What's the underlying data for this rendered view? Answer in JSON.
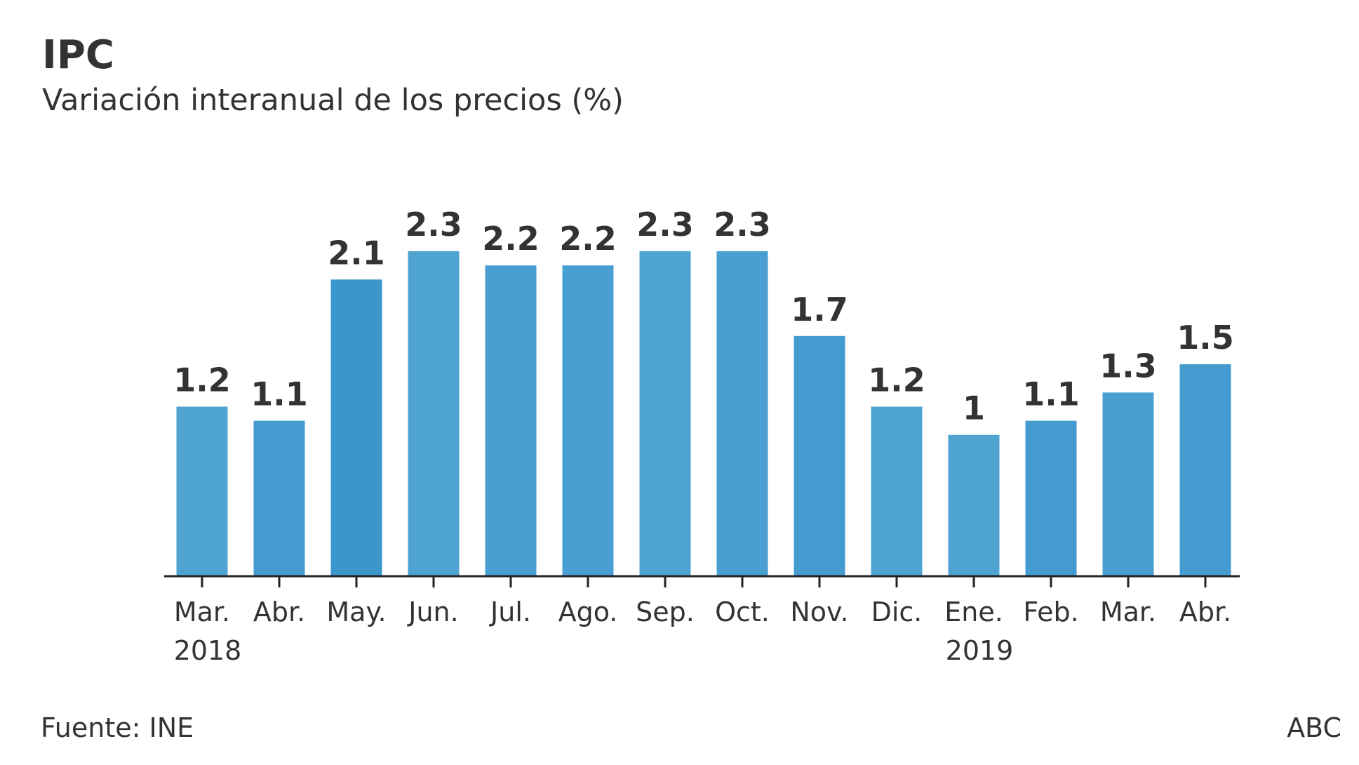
{
  "chart_data": {
    "type": "bar",
    "title": "IPC",
    "subtitle": "Variación interanual de los precios (%)",
    "categories": [
      "Mar.",
      "Abr.",
      "May.",
      "Jun.",
      "Jul.",
      "Ago.",
      "Sep.",
      "Oct.",
      "Nov.",
      "Dic.",
      "Ene.",
      "Feb.",
      "Mar.",
      "Abr."
    ],
    "year_labels": [
      {
        "index": 0,
        "label": "2018"
      },
      {
        "index": 10,
        "label": "2019"
      }
    ],
    "values": [
      1.2,
      1.1,
      2.1,
      2.3,
      2.2,
      2.2,
      2.3,
      2.3,
      1.7,
      1.2,
      1.0,
      1.1,
      1.3,
      1.5
    ],
    "value_labels": [
      "1.2",
      "1.1",
      "2.1",
      "2.3",
      "2.2",
      "2.2",
      "2.3",
      "2.3",
      "1.7",
      "1.2",
      "1",
      "1.1",
      "1.3",
      "1.5"
    ],
    "ylim": [
      0,
      2.3
    ],
    "grid": false,
    "bar_colors": [
      "#4fa3d1",
      "#449bd0",
      "#3b96cc",
      "#4fa3d1",
      "#4a9fd2",
      "#4a9fd2",
      "#4fa3d1",
      "#4a9fd2",
      "#449bd0",
      "#4fa3d1",
      "#4fa3d1",
      "#449bd0",
      "#4a9fd2",
      "#449bd0"
    ]
  },
  "source": "Fuente: INE",
  "credit": "ABC"
}
